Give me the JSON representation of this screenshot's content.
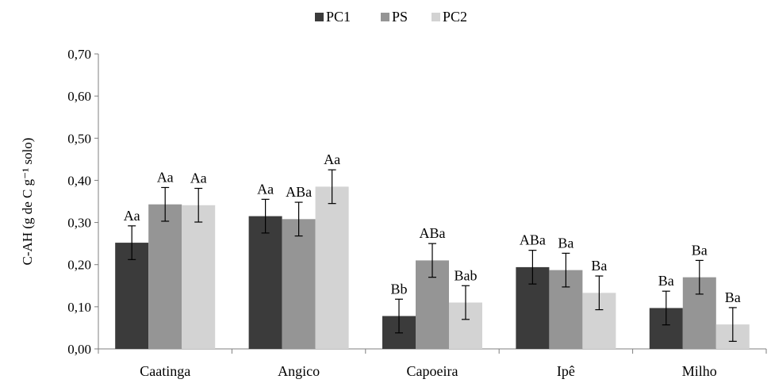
{
  "chart_data": {
    "type": "bar",
    "title": "",
    "ylabel": "C-AH (g de C g⁻¹ solo)",
    "xlabel": "",
    "ylim": [
      0,
      0.7
    ],
    "yticks": [
      "0,00",
      "0,10",
      "0,20",
      "0,30",
      "0,40",
      "0,50",
      "0,60",
      "0,70"
    ],
    "categories": [
      "Caatinga",
      "Angico",
      "Capoeira",
      "Ipê",
      "Milho"
    ],
    "legend_position": "top-center",
    "grid": false,
    "series": [
      {
        "name": "PC1",
        "color": "#3b3b3b",
        "values": [
          0.252,
          0.315,
          0.078,
          0.194,
          0.097
        ],
        "errors": [
          0.04,
          0.04,
          0.04,
          0.04,
          0.04
        ],
        "labels": [
          "Aa",
          "Aa",
          "Bb",
          "ABa",
          "Ba"
        ]
      },
      {
        "name": "PS",
        "color": "#959595",
        "values": [
          0.343,
          0.308,
          0.21,
          0.187,
          0.17
        ],
        "errors": [
          0.04,
          0.04,
          0.04,
          0.04,
          0.04
        ],
        "labels": [
          "Aa",
          "ABa",
          "ABa",
          "Ba",
          "Ba"
        ]
      },
      {
        "name": "PC2",
        "color": "#d3d3d3",
        "values": [
          0.341,
          0.385,
          0.11,
          0.133,
          0.058
        ],
        "errors": [
          0.04,
          0.04,
          0.04,
          0.04,
          0.04
        ],
        "labels": [
          "Aa",
          "Aa",
          "Bab",
          "Ba",
          "Ba"
        ]
      }
    ]
  }
}
